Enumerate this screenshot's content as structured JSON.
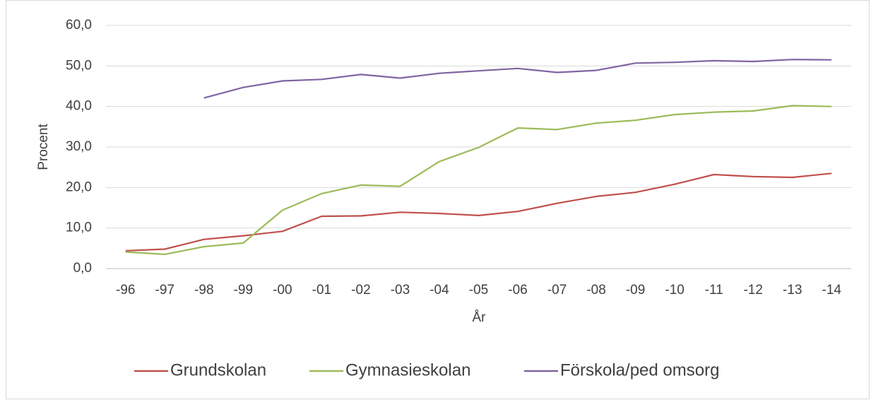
{
  "chart_data": {
    "type": "line",
    "x_label": "År",
    "y_label": "Procent",
    "categories": [
      "-96",
      "-97",
      "-98",
      "-99",
      "-00",
      "-01",
      "-02",
      "-03",
      "-04",
      "-05",
      "-06",
      "-07",
      "-08",
      "-09",
      "-10",
      "-11",
      "-12",
      "-13",
      "-14"
    ],
    "series": [
      {
        "name": "Grundskolan",
        "color": "#c0504d",
        "values": [
          4.4,
          4.8,
          7.2,
          8.1,
          9.2,
          12.9,
          13.0,
          13.9,
          13.6,
          13.1,
          14.1,
          16.1,
          17.8,
          18.8,
          20.8,
          23.2,
          22.7,
          22.5,
          23.5
        ]
      },
      {
        "name": "Gymnasieskolan",
        "color": "#9bbb59",
        "values": [
          4.1,
          3.5,
          5.4,
          6.3,
          14.4,
          18.5,
          20.6,
          20.3,
          26.4,
          29.9,
          34.7,
          34.3,
          35.9,
          36.6,
          38.0,
          38.6,
          38.9,
          40.2,
          40.0
        ]
      },
      {
        "name": "Förskola/ped omsorg",
        "color": "#8064a2",
        "values": [
          null,
          null,
          42.1,
          44.7,
          46.3,
          46.7,
          47.9,
          47.0,
          48.2,
          48.8,
          49.4,
          48.4,
          48.9,
          50.7,
          50.9,
          51.3,
          51.1,
          51.6,
          51.5
        ]
      }
    ],
    "ylim": [
      0,
      60
    ],
    "yticks": [
      {
        "value": 0,
        "label": "0,0"
      },
      {
        "value": 10,
        "label": "10,0"
      },
      {
        "value": 20,
        "label": "20,0"
      },
      {
        "value": 30,
        "label": "30,0"
      },
      {
        "value": 40,
        "label": "40,0"
      },
      {
        "value": 50,
        "label": "50,0"
      },
      {
        "value": 60,
        "label": "60,0"
      }
    ],
    "grid": true,
    "legend": "bottom"
  }
}
